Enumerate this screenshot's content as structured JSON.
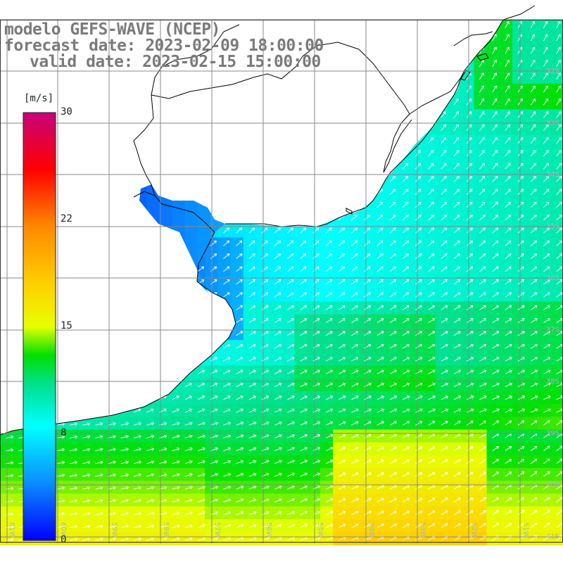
{
  "header": {
    "model_line": "modelo GEFS-WAVE (NCEP)",
    "forecast_line": "forecast date: 2023-02-09 18:00:00",
    "valid_line": "valid date: 2023-02-15 15:00:00"
  },
  "colorbar": {
    "unit": "[m/s]",
    "min": 0,
    "max": 30,
    "tick_values": [
      30,
      22,
      15,
      8,
      0
    ],
    "tick_labels": [
      "30",
      "22",
      "15",
      "8",
      "0"
    ],
    "gradient": [
      {
        "v": 0,
        "c": "#0000ff"
      },
      {
        "v": 4,
        "c": "#0a8cff"
      },
      {
        "v": 8,
        "c": "#00ffff"
      },
      {
        "v": 11,
        "c": "#00e08a"
      },
      {
        "v": 13,
        "c": "#00e000"
      },
      {
        "v": 15,
        "c": "#e8ff00"
      },
      {
        "v": 18,
        "c": "#ffd000"
      },
      {
        "v": 22,
        "c": "#ff8a00"
      },
      {
        "v": 26,
        "c": "#ff0000"
      },
      {
        "v": 30,
        "c": "#c8007a"
      }
    ]
  },
  "map": {
    "lat_labels": [
      "32S",
      "33S",
      "34S",
      "35S",
      "36S",
      "37S",
      "38S",
      "39S",
      "40S",
      "41S"
    ],
    "lon_labels": [
      "61W",
      "60W",
      "59W",
      "58W",
      "57W",
      "56W",
      "55W",
      "54W",
      "53W",
      "52W",
      "51W"
    ],
    "wind_direction": "south-west to north-east"
  }
}
